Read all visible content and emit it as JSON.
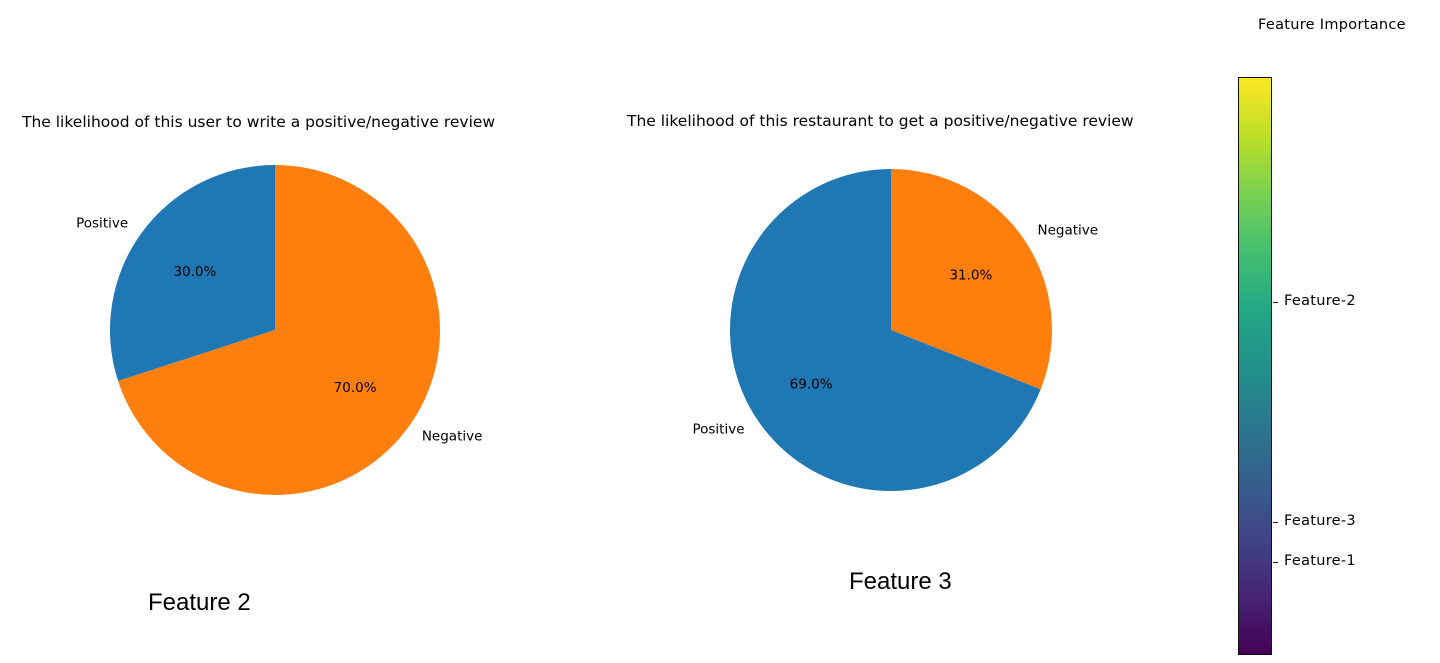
{
  "chart_data": [
    {
      "type": "pie",
      "title": "The likelihood of this user to write a positive/negative review",
      "slices": [
        {
          "label": "Positive",
          "value": 30.0,
          "pct_label": "30.0%",
          "color": "#1f77b4"
        },
        {
          "label": "Negative",
          "value": 70.0,
          "pct_label": "70.0%",
          "color": "#ff7f0e"
        }
      ]
    },
    {
      "type": "pie",
      "title": "The likelihood of this restaurant to get a positive/negative review",
      "slices": [
        {
          "label": "Positive",
          "value": 69.0,
          "pct_label": "69.0%",
          "color": "#1f77b4"
        },
        {
          "label": "Negative",
          "value": 31.0,
          "pct_label": "31.0%",
          "color": "#ff7f0e"
        }
      ]
    }
  ],
  "captions": {
    "left": "Feature 2",
    "right": "Feature 3"
  },
  "colorbar": {
    "title": "Feature Importance",
    "colormap": "viridis",
    "ticks": [
      {
        "label": "Feature-2"
      },
      {
        "label": "Feature-3"
      },
      {
        "label": "Feature-1"
      }
    ]
  }
}
